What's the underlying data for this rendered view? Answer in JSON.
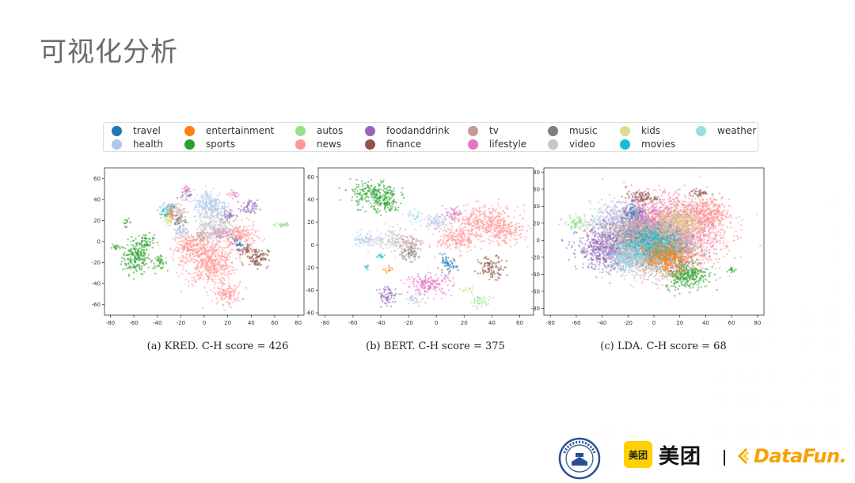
{
  "slide": {
    "title": "可视化分析"
  },
  "legend": {
    "items": [
      {
        "label": "travel",
        "color": "#1f77b4"
      },
      {
        "label": "entertainment",
        "color": "#ff7f0e"
      },
      {
        "label": "autos",
        "color": "#98df8a"
      },
      {
        "label": "foodanddrink",
        "color": "#9467bd"
      },
      {
        "label": "tv",
        "color": "#c49c94"
      },
      {
        "label": "music",
        "color": "#7f7f7f"
      },
      {
        "label": "kids",
        "color": "#dbdb8d"
      },
      {
        "label": "weather",
        "color": "#9edae5"
      },
      {
        "label": "health",
        "color": "#aec7e8"
      },
      {
        "label": "sports",
        "color": "#2ca02c"
      },
      {
        "label": "news",
        "color": "#ff9896"
      },
      {
        "label": "finance",
        "color": "#8c564b"
      },
      {
        "label": "lifestyle",
        "color": "#e377c2"
      },
      {
        "label": "video",
        "color": "#c7c7c7"
      },
      {
        "label": "movies",
        "color": "#17becf"
      }
    ]
  },
  "chart_data": [
    {
      "type": "scatter",
      "caption": "(a)  KRED. C-H score = 426",
      "xlim": [
        -85,
        85
      ],
      "ylim": [
        -70,
        70
      ],
      "xticks": [
        "-80",
        "-60",
        "-40",
        "-20",
        "0",
        "20",
        "40",
        "60",
        "80"
      ],
      "yticks": [
        "60",
        "40",
        "20",
        "0",
        "-20",
        "-40",
        "-60"
      ],
      "series": [
        {
          "name": "sports",
          "clusters": [
            [
              -58,
              -15,
              10,
              13
            ],
            [
              -50,
              0,
              6,
              6
            ],
            [
              -75,
              -5,
              3,
              3
            ],
            [
              -66,
              18,
              3,
              3
            ],
            [
              -38,
              -20,
              5,
              5
            ]
          ]
        },
        {
          "name": "autos",
          "clusters": [
            [
              67,
              16,
              6,
              3
            ]
          ]
        },
        {
          "name": "news",
          "clusters": [
            [
              5,
              -20,
              18,
              18
            ],
            [
              20,
              -50,
              10,
              8
            ],
            [
              -12,
              -5,
              12,
              10
            ],
            [
              30,
              5,
              12,
              10
            ]
          ]
        },
        {
          "name": "finance",
          "clusters": [
            [
              45,
              -15,
              8,
              8
            ],
            [
              35,
              -8,
              5,
              4
            ]
          ]
        },
        {
          "name": "foodanddrink",
          "clusters": [
            [
              38,
              32,
              6,
              6
            ],
            [
              20,
              25,
              6,
              5
            ],
            [
              -15,
              45,
              4,
              4
            ]
          ]
        },
        {
          "name": "health",
          "clusters": [
            [
              5,
              35,
              12,
              12
            ],
            [
              -20,
              10,
              6,
              5
            ]
          ]
        },
        {
          "name": "tv",
          "clusters": [
            [
              -25,
              28,
              7,
              7
            ],
            [
              -2,
              5,
              6,
              5
            ]
          ]
        },
        {
          "name": "music",
          "clusters": [
            [
              -22,
              20,
              5,
              5
            ]
          ]
        },
        {
          "name": "travel",
          "clusters": [
            [
              28,
              -2,
              4,
              4
            ],
            [
              -28,
              32,
              3,
              3
            ]
          ]
        },
        {
          "name": "lifestyle",
          "clusters": [
            [
              12,
              8,
              8,
              6
            ],
            [
              -15,
              50,
              3,
              3
            ],
            [
              25,
              45,
              4,
              3
            ]
          ]
        },
        {
          "name": "kids",
          "clusters": [
            [
              -30,
              20,
              4,
              4
            ]
          ]
        },
        {
          "name": "movies",
          "clusters": [
            [
              -35,
              28,
              4,
              4
            ]
          ]
        },
        {
          "name": "video",
          "clusters": [
            [
              10,
              15,
              12,
              12
            ]
          ]
        },
        {
          "name": "weather",
          "clusters": [
            [
              -32,
              32,
              4,
              3
            ]
          ]
        },
        {
          "name": "entertainment",
          "clusters": [
            [
              -30,
              28,
              3,
              3
            ]
          ]
        }
      ]
    },
    {
      "type": "scatter",
      "caption": "(b)  BERT. C-H score = 375",
      "xlim": [
        -85,
        70
      ],
      "ylim": [
        -62,
        68
      ],
      "xticks": [
        "-80",
        "-60",
        "-40",
        "-20",
        "0",
        "20",
        "40",
        "60"
      ],
      "yticks": [
        "60",
        "40",
        "20",
        "0",
        "-20",
        "-40",
        "-60"
      ],
      "series": [
        {
          "name": "sports",
          "clusters": [
            [
              -45,
              45,
              14,
              10
            ],
            [
              -35,
              35,
              8,
              6
            ]
          ]
        },
        {
          "name": "news",
          "clusters": [
            [
              35,
              20,
              20,
              12
            ],
            [
              15,
              5,
              12,
              10
            ],
            [
              50,
              10,
              10,
              8
            ]
          ]
        },
        {
          "name": "finance",
          "clusters": [
            [
              40,
              -20,
              8,
              8
            ]
          ]
        },
        {
          "name": "foodanddrink",
          "clusters": [
            [
              -35,
              -45,
              6,
              7
            ]
          ]
        },
        {
          "name": "autos",
          "clusters": [
            [
              32,
              -50,
              6,
              4
            ]
          ]
        },
        {
          "name": "health",
          "clusters": [
            [
              -15,
              -48,
              5,
              4
            ],
            [
              -50,
              5,
              8,
              6
            ],
            [
              0,
              20,
              8,
              6
            ]
          ]
        },
        {
          "name": "tv",
          "clusters": [
            [
              -20,
              0,
              8,
              8
            ]
          ]
        },
        {
          "name": "music",
          "clusters": [
            [
              -20,
              -8,
              6,
              5
            ]
          ]
        },
        {
          "name": "travel",
          "clusters": [
            [
              8,
              -18,
              6,
              6
            ]
          ]
        },
        {
          "name": "lifestyle",
          "clusters": [
            [
              -5,
              -35,
              14,
              8
            ],
            [
              12,
              28,
              6,
              5
            ]
          ]
        },
        {
          "name": "video",
          "clusters": [
            [
              -30,
              5,
              10,
              8
            ]
          ]
        },
        {
          "name": "movies",
          "clusters": [
            [
              -50,
              -20,
              2,
              2
            ],
            [
              -40,
              -10,
              3,
              3
            ]
          ]
        },
        {
          "name": "entertainment",
          "clusters": [
            [
              -34,
              -22,
              3,
              3
            ]
          ]
        },
        {
          "name": "weather",
          "clusters": [
            [
              -15,
              25,
              5,
              4
            ]
          ]
        },
        {
          "name": "kids",
          "clusters": [
            [
              22,
              -40,
              4,
              3
            ]
          ]
        }
      ]
    },
    {
      "type": "scatter",
      "caption": "(c)  LDA. C-H score = 68",
      "xlim": [
        -85,
        85
      ],
      "ylim": [
        -88,
        85
      ],
      "xticks": [
        "-80",
        "-60",
        "-40",
        "-20",
        "0",
        "20",
        "40",
        "60",
        "80"
      ],
      "yticks": [
        "80",
        "60",
        "40",
        "20",
        "0",
        "-20",
        "-40",
        "-60",
        "-80"
      ],
      "series": [
        {
          "name": "news",
          "clusters": [
            [
              10,
              5,
              35,
              35
            ],
            [
              40,
              30,
              15,
              15
            ]
          ]
        },
        {
          "name": "sports",
          "clusters": [
            [
              25,
              -40,
              14,
              14
            ],
            [
              60,
              -35,
              3,
              3
            ]
          ]
        },
        {
          "name": "finance",
          "clusters": [
            [
              -10,
              50,
              10,
              6
            ],
            [
              35,
              55,
              6,
              4
            ]
          ]
        },
        {
          "name": "health",
          "clusters": [
            [
              -25,
              20,
              20,
              20
            ]
          ]
        },
        {
          "name": "travel",
          "clusters": [
            [
              -15,
              30,
              8,
              8
            ]
          ]
        },
        {
          "name": "lifestyle",
          "clusters": [
            [
              5,
              10,
              30,
              30
            ]
          ]
        },
        {
          "name": "foodanddrink",
          "clusters": [
            [
              -35,
              -10,
              20,
              20
            ]
          ]
        },
        {
          "name": "tv",
          "clusters": [
            [
              -5,
              0,
              25,
              25
            ]
          ]
        },
        {
          "name": "autos",
          "clusters": [
            [
              -60,
              20,
              8,
              6
            ]
          ]
        },
        {
          "name": "music",
          "clusters": [
            [
              -10,
              0,
              10,
              10
            ]
          ]
        },
        {
          "name": "video",
          "clusters": [
            [
              0,
              -10,
              25,
              25
            ]
          ]
        },
        {
          "name": "movies",
          "clusters": [
            [
              0,
              -5,
              20,
              20
            ]
          ]
        },
        {
          "name": "kids",
          "clusters": [
            [
              20,
              20,
              15,
              15
            ]
          ]
        },
        {
          "name": "weather",
          "clusters": [
            [
              -20,
              -20,
              15,
              15
            ]
          ]
        },
        {
          "name": "entertainment",
          "clusters": [
            [
              10,
              -20,
              15,
              15
            ]
          ]
        }
      ]
    }
  ],
  "logos": {
    "brand_name": "美团",
    "brand_box": "美团",
    "datafun": "DataFun."
  }
}
